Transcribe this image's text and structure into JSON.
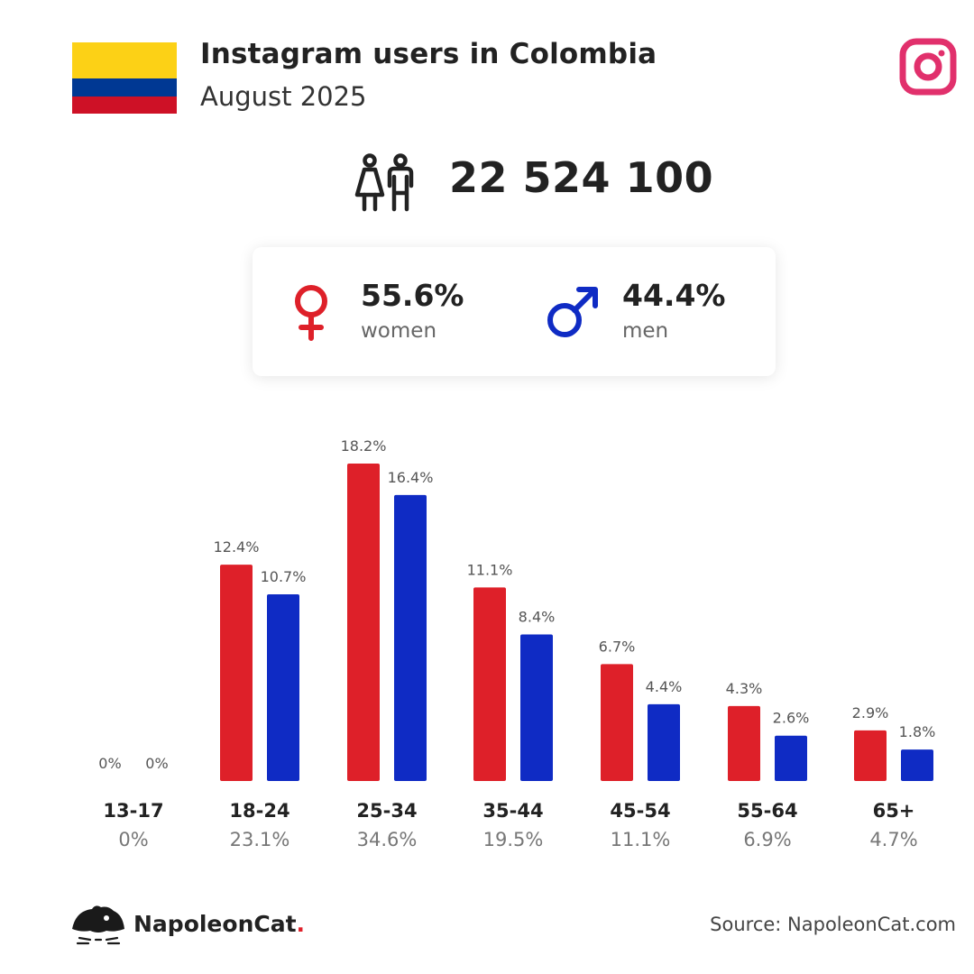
{
  "header": {
    "title": "Instagram users in Colombia",
    "subtitle": "August 2025",
    "flag_colors": [
      "#fcd116",
      "#003893",
      "#ce1126"
    ],
    "logo_icon": "instagram-icon",
    "logo_color": "#e1306c"
  },
  "total": {
    "icon": "people-icon",
    "value": "22 524 100"
  },
  "gender": {
    "women": {
      "icon": "venus-icon",
      "percent": "55.6%",
      "label": "women",
      "color": "#de2029"
    },
    "men": {
      "icon": "mars-icon",
      "percent": "44.4%",
      "label": "men",
      "color": "#0f2bc4"
    }
  },
  "chart_data": {
    "type": "bar",
    "categories": [
      "13-17",
      "18-24",
      "25-34",
      "35-44",
      "45-54",
      "55-64",
      "65+"
    ],
    "category_totals": [
      "0%",
      "23.1%",
      "34.6%",
      "19.5%",
      "11.1%",
      "6.9%",
      "4.7%"
    ],
    "series": [
      {
        "color": "#de2029",
        "values": [
          0,
          12.4,
          18.2,
          11.1,
          6.7,
          4.3,
          2.9
        ],
        "labels": [
          "0%",
          "12.4%",
          "18.2%",
          "11.1%",
          "6.7%",
          "4.3%",
          "2.9%"
        ]
      },
      {
        "color": "#0f2bc4",
        "values": [
          0,
          10.7,
          16.4,
          8.4,
          4.4,
          2.6,
          1.8
        ],
        "labels": [
          "0%",
          "10.7%",
          "16.4%",
          "8.4%",
          "4.4%",
          "2.6%",
          "1.8%"
        ]
      }
    ],
    "ylim": [
      0,
      18.2
    ],
    "grid": false
  },
  "footer": {
    "brand_icon": "napoleoncat-logo-icon",
    "brand_name": "NapoleonCat",
    "brand_dot": ".",
    "source": "Source: NapoleonCat.com"
  }
}
